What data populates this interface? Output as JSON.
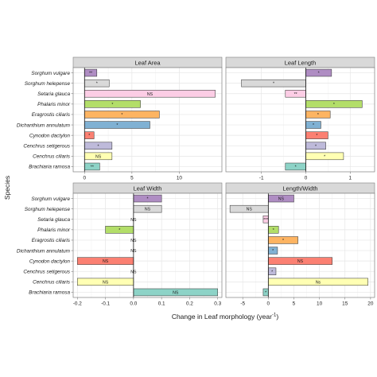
{
  "chart_data": {
    "type": "bar",
    "orientation": "horizontal",
    "layout": "facet-grid 2x2",
    "xlabel_main": "Change in Leaf morphology (year",
    "xlabel_sup": "-1",
    "xlabel_end": ")",
    "ylabel": "Species",
    "grid": true,
    "legend": "none",
    "species": [
      "Sorghum vulgare",
      "Sorghum helepense",
      "Setaria glauca",
      "Phalaris minor",
      "Eragrostis ciliaris",
      "Dichanthium annulatum",
      "Cynodon dactylon",
      "Cenchrus setigerous",
      "Cenchrus ciliaris",
      "Brachiaria ramosa"
    ],
    "colors": [
      "#af8dc3",
      "#d9d9d9",
      "#fccde5",
      "#b3de69",
      "#fdb462",
      "#80b1d3",
      "#fb8072",
      "#bebada",
      "#ffffb3",
      "#8dd3c7"
    ],
    "panels": [
      {
        "name": "Leaf Area",
        "xlim": [
          -1.2,
          14.5
        ],
        "xticks": [
          0,
          5,
          10
        ],
        "values": [
          1.3,
          2.6,
          13.8,
          5.9,
          7.9,
          6.9,
          1.0,
          2.9,
          2.9,
          1.6
        ],
        "labels": [
          "**",
          "*",
          "NS",
          "*",
          "*",
          "*",
          "*",
          "*",
          "NS",
          "**"
        ]
      },
      {
        "name": "Leaf Length",
        "xlim": [
          -1.8,
          1.55
        ],
        "xticks": [
          -1,
          0,
          1
        ],
        "values": [
          0.58,
          -1.45,
          -0.46,
          1.27,
          0.55,
          0.34,
          0.5,
          0.45,
          0.85,
          -0.46
        ],
        "labels": [
          "*",
          "*",
          "**",
          "*",
          "*",
          "*",
          "*",
          "*",
          "*",
          "*"
        ]
      },
      {
        "name": "Leaf Width",
        "xlim": [
          -0.215,
          0.315
        ],
        "xticks": [
          -0.2,
          -0.1,
          0.0,
          0.1,
          0.2,
          0.3
        ],
        "values": [
          0.1,
          0.1,
          0.0,
          -0.1,
          0.0,
          0.0,
          -0.2,
          0.0,
          -0.2,
          0.3
        ],
        "labels": [
          "*",
          "NS",
          "NS",
          "*",
          "NS",
          "NS",
          "NS",
          "NS",
          "NS",
          "NS"
        ]
      },
      {
        "name": "Length/Width",
        "xlim": [
          -8.3,
          20.8
        ],
        "xticks": [
          -5,
          0,
          5,
          10,
          15,
          20
        ],
        "values": [
          5.0,
          -7.5,
          -1.0,
          2.0,
          5.8,
          1.8,
          12.5,
          1.5,
          19.5,
          -1.0
        ],
        "labels": [
          "NS",
          "NS",
          "***",
          "*",
          "*",
          "*",
          "NS",
          "*",
          "Ns",
          "*"
        ]
      }
    ]
  }
}
